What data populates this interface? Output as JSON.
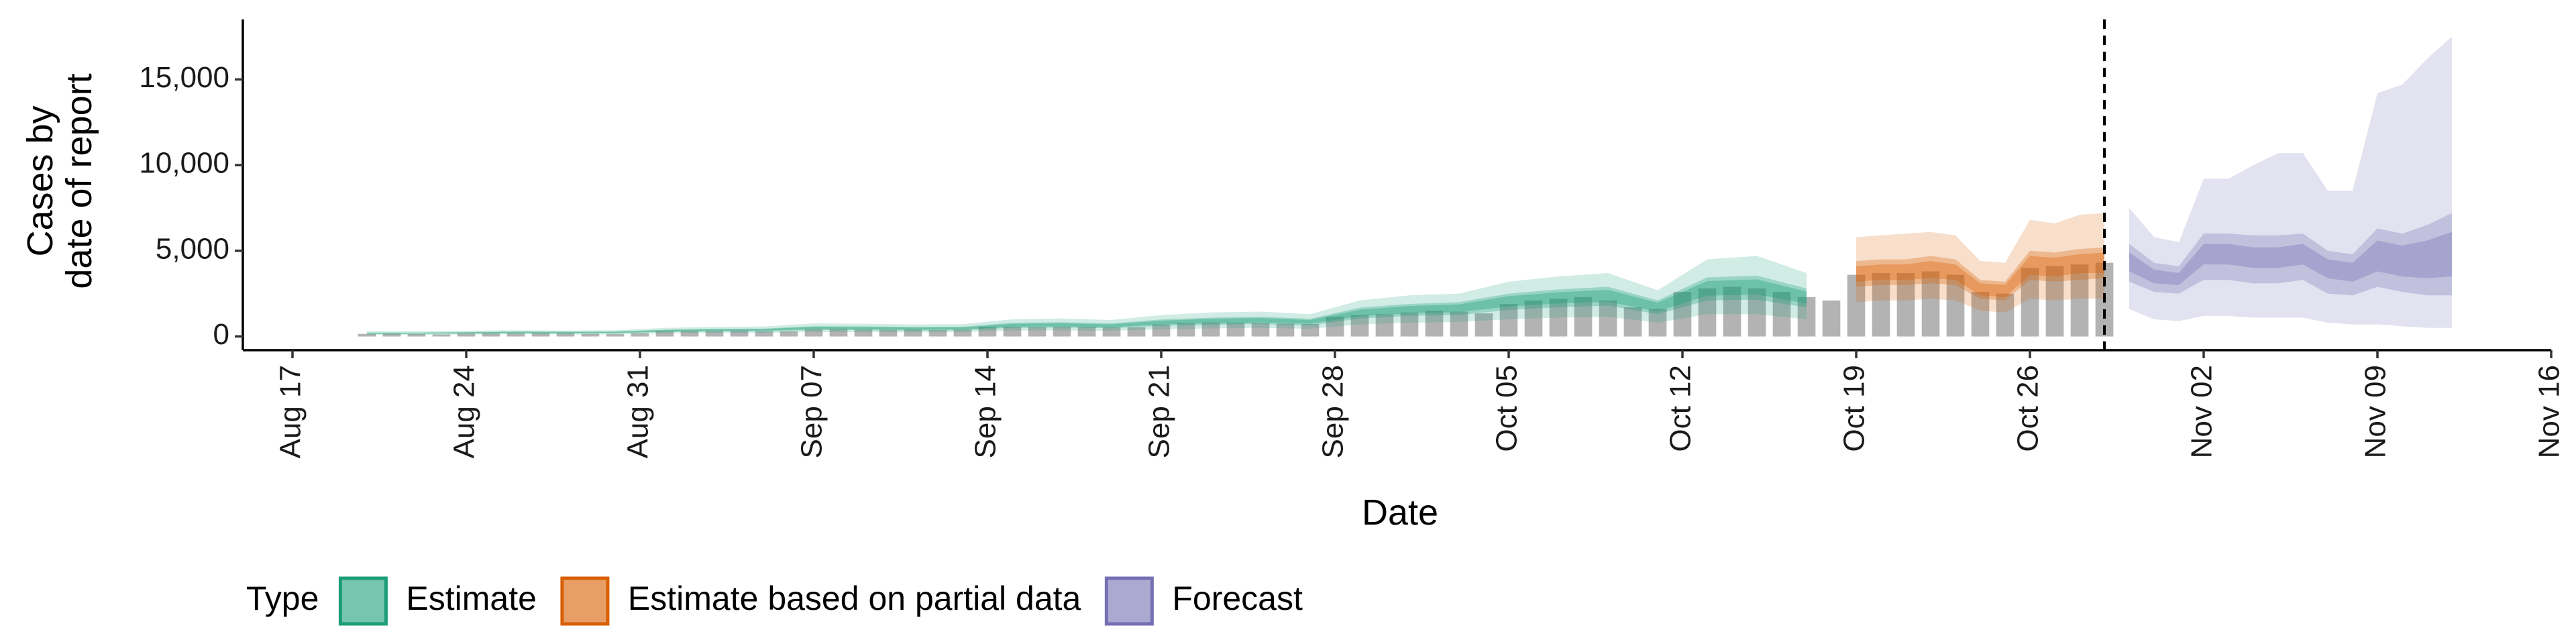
{
  "chart_data": {
    "type": "ribbon",
    "x_label": "Date",
    "y_label": [
      "Cases by",
      "date of report"
    ],
    "xlim": [
      "Aug 15",
      "Nov 16"
    ],
    "xticks": [
      "Aug 17",
      "Aug 24",
      "Aug 31",
      "Sep 07",
      "Sep 14",
      "Sep 21",
      "Sep 28",
      "Oct 05",
      "Oct 12",
      "Oct 19",
      "Oct 26",
      "Nov 02",
      "Nov 09",
      "Nov 16"
    ],
    "ylim": [
      -800,
      18500
    ],
    "yticks": [
      0,
      {
        "value": 5000,
        "label": "5,000"
      },
      {
        "value": 10000,
        "label": "10,000"
      },
      {
        "value": 15000,
        "label": "15,000"
      }
    ],
    "grid": false,
    "vline_x": "Oct 29",
    "legend_title": "Type",
    "legend_position": "bottom",
    "bars": {
      "color": "#b3b3b3",
      "x": [
        "Aug 20",
        "Aug 21",
        "Aug 22",
        "Aug 23",
        "Aug 24",
        "Aug 25",
        "Aug 26",
        "Aug 27",
        "Aug 28",
        "Aug 29",
        "Aug 30",
        "Aug 31",
        "Sep 01",
        "Sep 02",
        "Sep 03",
        "Sep 04",
        "Sep 05",
        "Sep 06",
        "Sep 07",
        "Sep 08",
        "Sep 09",
        "Sep 10",
        "Sep 11",
        "Sep 12",
        "Sep 13",
        "Sep 14",
        "Sep 15",
        "Sep 16",
        "Sep 17",
        "Sep 18",
        "Sep 19",
        "Sep 20",
        "Sep 21",
        "Sep 22",
        "Sep 23",
        "Sep 24",
        "Sep 25",
        "Sep 26",
        "Sep 27",
        "Sep 28",
        "Sep 29",
        "Sep 30",
        "Oct 01",
        "Oct 02",
        "Oct 03",
        "Oct 04",
        "Oct 05",
        "Oct 06",
        "Oct 07",
        "Oct 08",
        "Oct 09",
        "Oct 10",
        "Oct 11",
        "Oct 12",
        "Oct 13",
        "Oct 14",
        "Oct 15",
        "Oct 16",
        "Oct 17",
        "Oct 18",
        "Oct 19",
        "Oct 20",
        "Oct 21",
        "Oct 22",
        "Oct 23",
        "Oct 24",
        "Oct 25",
        "Oct 26",
        "Oct 27",
        "Oct 28",
        "Oct 29"
      ],
      "values": [
        150,
        160,
        140,
        120,
        170,
        180,
        190,
        200,
        190,
        160,
        150,
        200,
        300,
        320,
        330,
        340,
        310,
        300,
        420,
        430,
        410,
        390,
        400,
        380,
        400,
        560,
        570,
        550,
        580,
        560,
        530,
        540,
        700,
        780,
        820,
        810,
        790,
        750,
        730,
        1150,
        1250,
        1300,
        1400,
        1500,
        1450,
        1350,
        1900,
        2100,
        2200,
        2300,
        2100,
        1700,
        1600,
        2600,
        2800,
        2900,
        2800,
        2600,
        2300,
        2100,
        3600,
        3700,
        3700,
        3800,
        3600,
        2600,
        2500,
        4000,
        4100,
        4200,
        4300
      ]
    },
    "series": [
      {
        "name": "Estimate",
        "color": "#1b9e77",
        "x": [
          "Aug 20",
          "Aug 22",
          "Aug 24",
          "Aug 26",
          "Aug 28",
          "Aug 30",
          "Sep 01",
          "Sep 03",
          "Sep 05",
          "Sep 07",
          "Sep 09",
          "Sep 11",
          "Sep 13",
          "Sep 15",
          "Sep 17",
          "Sep 19",
          "Sep 21",
          "Sep 23",
          "Sep 25",
          "Sep 27",
          "Sep 29",
          "Oct 01",
          "Oct 03",
          "Oct 05",
          "Oct 07",
          "Oct 09",
          "Oct 11",
          "Oct 13",
          "Oct 15",
          "Oct 17"
        ],
        "lower_90": [
          100,
          100,
          120,
          130,
          120,
          130,
          180,
          200,
          210,
          260,
          250,
          240,
          250,
          350,
          360,
          330,
          420,
          470,
          500,
          450,
          700,
          800,
          850,
          1000,
          1100,
          1150,
          800,
          1300,
          1300,
          1000
        ],
        "upper_90": [
          300,
          300,
          330,
          360,
          340,
          360,
          500,
          560,
          580,
          760,
          740,
          700,
          720,
          1000,
          1050,
          960,
          1250,
          1400,
          1450,
          1300,
          2100,
          2400,
          2500,
          3200,
          3500,
          3700,
          2700,
          4500,
          4700,
          3700
        ],
        "lower_50": [
          150,
          150,
          170,
          190,
          180,
          190,
          260,
          290,
          300,
          380,
          370,
          350,
          360,
          500,
          520,
          480,
          620,
          690,
          720,
          650,
          1050,
          1200,
          1250,
          1550,
          1700,
          1800,
          1300,
          2100,
          2150,
          1700
        ],
        "upper_50": [
          230,
          230,
          260,
          290,
          280,
          290,
          400,
          450,
          460,
          600,
          590,
          560,
          570,
          800,
          830,
          760,
          990,
          1100,
          1150,
          1030,
          1680,
          1900,
          2000,
          2500,
          2750,
          2900,
          2100,
          3450,
          3550,
          2800
        ],
        "lower_20": [
          170,
          170,
          190,
          210,
          200,
          210,
          290,
          330,
          340,
          430,
          420,
          400,
          410,
          570,
          590,
          540,
          700,
          780,
          820,
          740,
          1180,
          1350,
          1420,
          1750,
          1920,
          2020,
          1460,
          2380,
          2450,
          1920
        ],
        "upper_20": [
          210,
          210,
          240,
          270,
          260,
          270,
          370,
          420,
          430,
          560,
          550,
          520,
          530,
          740,
          770,
          710,
          920,
          1030,
          1080,
          960,
          1560,
          1780,
          1870,
          2350,
          2580,
          2720,
          1970,
          3230,
          3330,
          2620
        ]
      },
      {
        "name": "Estimate based on partial data",
        "color": "#d95f02",
        "x": [
          "Oct 19",
          "Oct 20",
          "Oct 21",
          "Oct 22",
          "Oct 23",
          "Oct 24",
          "Oct 25",
          "Oct 26",
          "Oct 27",
          "Oct 28",
          "Oct 29"
        ],
        "lower_90": [
          2000,
          2100,
          2100,
          2200,
          2100,
          1500,
          1400,
          2200,
          2100,
          2200,
          2200
        ],
        "upper_90": [
          5800,
          5900,
          6000,
          6100,
          5900,
          4400,
          4300,
          6800,
          6600,
          7100,
          7200
        ],
        "lower_50": [
          2900,
          3000,
          3000,
          3100,
          3000,
          2200,
          2100,
          3300,
          3200,
          3300,
          3400
        ],
        "upper_50": [
          4400,
          4500,
          4500,
          4700,
          4500,
          3300,
          3200,
          5000,
          4900,
          5100,
          5200
        ],
        "lower_20": [
          3200,
          3300,
          3300,
          3400,
          3300,
          2400,
          2300,
          3600,
          3500,
          3700,
          3700
        ],
        "upper_20": [
          4100,
          4200,
          4200,
          4400,
          4200,
          3100,
          3000,
          4700,
          4600,
          4800,
          4900
        ]
      },
      {
        "name": "Forecast",
        "color": "#7570b3",
        "x": [
          "Oct 30",
          "Oct 31",
          "Nov 01",
          "Nov 02",
          "Nov 03",
          "Nov 04",
          "Nov 05",
          "Nov 06",
          "Nov 07",
          "Nov 08",
          "Nov 09",
          "Nov 10",
          "Nov 11",
          "Nov 12"
        ],
        "lower_90": [
          1600,
          1000,
          900,
          1200,
          1200,
          1100,
          1100,
          1100,
          800,
          700,
          700,
          600,
          500,
          500
        ],
        "upper_90": [
          7500,
          5800,
          5500,
          9200,
          9200,
          10000,
          10700,
          10700,
          8500,
          8500,
          14200,
          14700,
          16200,
          17500
        ],
        "lower_50": [
          3200,
          2600,
          2500,
          3300,
          3300,
          3100,
          3100,
          3300,
          2500,
          2400,
          2900,
          2600,
          2400,
          2400
        ],
        "upper_50": [
          5400,
          4300,
          4100,
          6000,
          6000,
          5900,
          5900,
          6000,
          5000,
          4800,
          6300,
          6000,
          6500,
          7200
        ],
        "lower_20": [
          3800,
          3100,
          3000,
          4200,
          4200,
          4000,
          4000,
          4200,
          3400,
          3200,
          3800,
          3500,
          3400,
          3500
        ],
        "upper_20": [
          4900,
          3900,
          3700,
          5400,
          5400,
          5200,
          5200,
          5400,
          4500,
          4300,
          5600,
          5300,
          5600,
          6100
        ]
      }
    ]
  }
}
